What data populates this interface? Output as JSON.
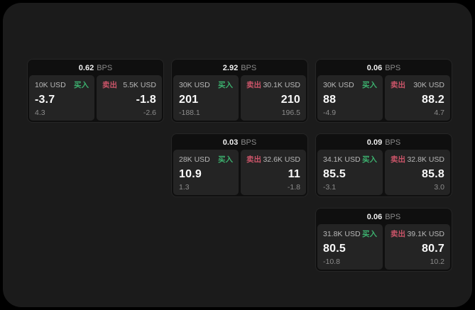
{
  "page": {
    "background": "#000000",
    "panel_background": "#1b1b1b"
  },
  "labels": {
    "bps": "BPS",
    "buy": "买入",
    "sell": "卖出"
  },
  "colors": {
    "buy_accent": "#3cb06e",
    "sell_accent": "#ca5468",
    "value_text": "#fafafa",
    "muted_text": "#8c8c8c"
  },
  "cards": [
    {
      "row": 1,
      "col": 1,
      "bps": "0.62",
      "buy": {
        "amount": "10K USD",
        "value": "-3.7",
        "sub": "4.3"
      },
      "sell": {
        "amount": "5.5K USD",
        "value": "-1.8",
        "sub": "-2.6"
      }
    },
    {
      "row": 1,
      "col": 2,
      "bps": "2.92",
      "buy": {
        "amount": "30K USD",
        "value": "201",
        "sub": "-188.1"
      },
      "sell": {
        "amount": "30.1K USD",
        "value": "210",
        "sub": "196.5"
      }
    },
    {
      "row": 1,
      "col": 3,
      "bps": "0.06",
      "buy": {
        "amount": "30K USD",
        "value": "88",
        "sub": "-4.9"
      },
      "sell": {
        "amount": "30K USD",
        "value": "88.2",
        "sub": "4.7"
      }
    },
    {
      "row": 2,
      "col": 2,
      "bps": "0.03",
      "buy": {
        "amount": "28K USD",
        "value": "10.9",
        "sub": "1.3"
      },
      "sell": {
        "amount": "32.6K USD",
        "value": "11",
        "sub": "-1.8"
      }
    },
    {
      "row": 2,
      "col": 3,
      "bps": "0.09",
      "buy": {
        "amount": "34.1K USD",
        "value": "85.5",
        "sub": "-3.1"
      },
      "sell": {
        "amount": "32.8K USD",
        "value": "85.8",
        "sub": "3.0"
      }
    },
    {
      "row": 3,
      "col": 3,
      "bps": "0.06",
      "buy": {
        "amount": "31.8K USD",
        "value": "80.5",
        "sub": "-10.8"
      },
      "sell": {
        "amount": "39.1K USD",
        "value": "80.7",
        "sub": "10.2"
      }
    }
  ]
}
